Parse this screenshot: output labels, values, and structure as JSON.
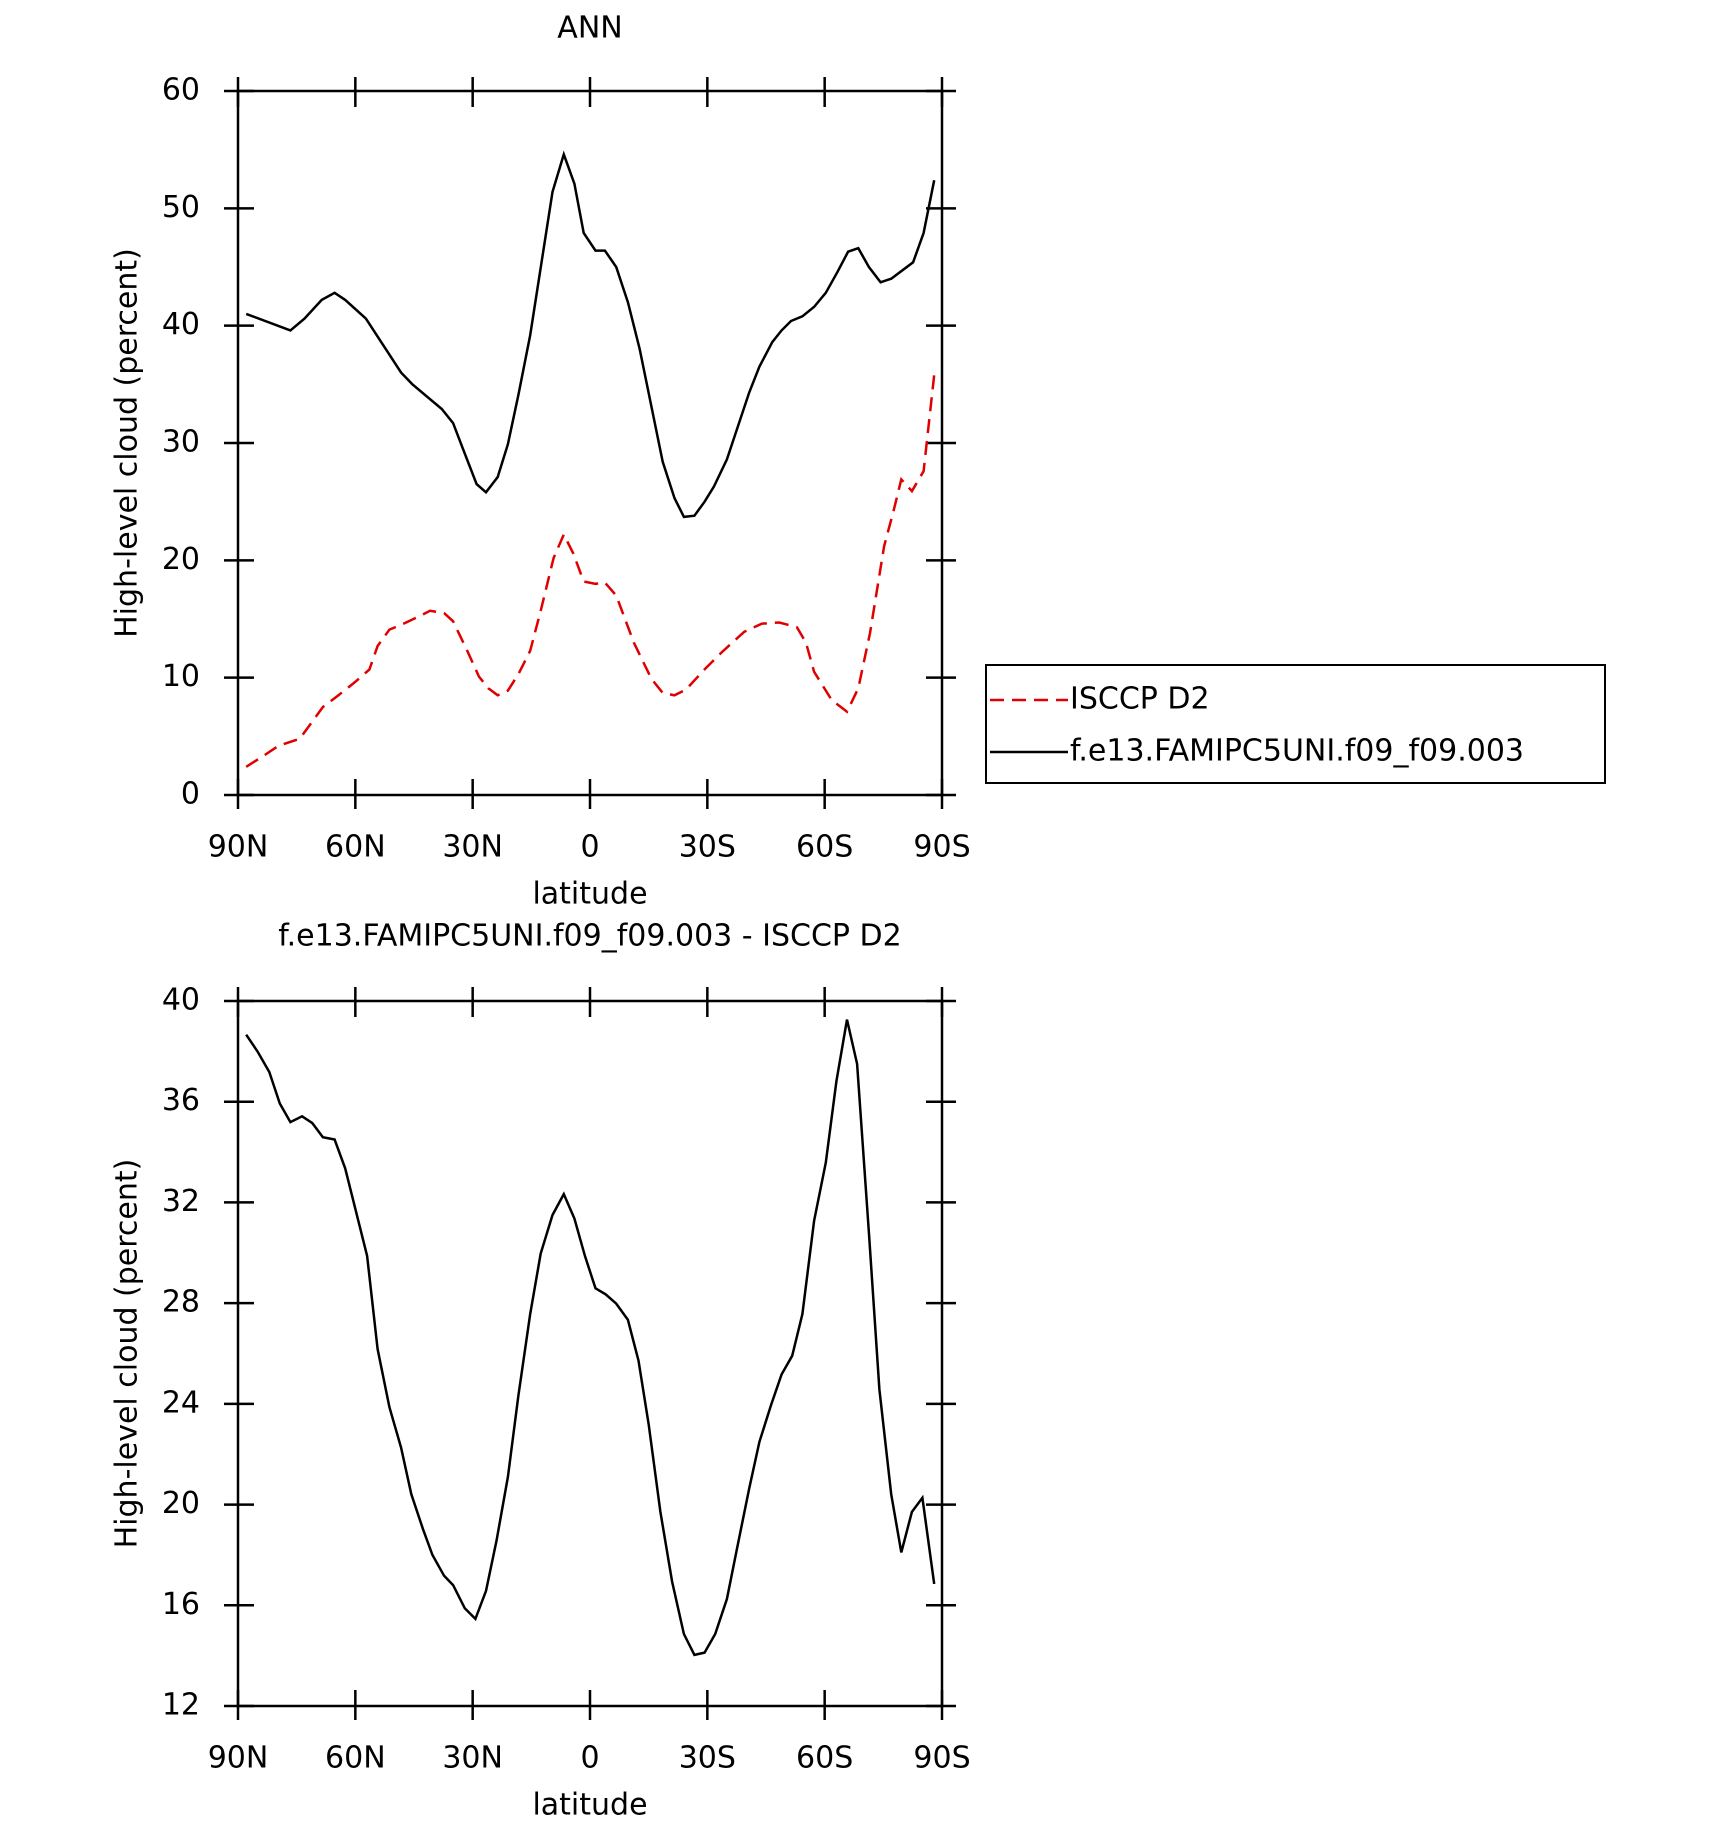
{
  "chart_data": [
    {
      "type": "line",
      "title": "ANN",
      "xlabel": "latitude",
      "ylabel": "High-level cloud (percent)",
      "xlim": [
        90,
        -90
      ],
      "ylim": [
        0,
        60
      ],
      "xticks": [
        {
          "value": 90,
          "label": "90N"
        },
        {
          "value": 60,
          "label": "60N"
        },
        {
          "value": 30,
          "label": "30N"
        },
        0,
        {
          "value": -30,
          "label": "30S"
        },
        {
          "value": -60,
          "label": "60S"
        },
        {
          "value": -90,
          "label": "90S"
        }
      ],
      "yticks": [
        0,
        10,
        20,
        30,
        40,
        50,
        60
      ],
      "legend": "right",
      "series": [
        {
          "name": "ISCCP D2",
          "color": "#e00000",
          "dash": true,
          "x": [
            87.9,
            83.2,
            79.6,
            74.2,
            68.3,
            64.7,
            60.2,
            56.4,
            54.3,
            51.3,
            48.3,
            43.9,
            40.9,
            37.3,
            35,
            31.4,
            28.4,
            26,
            23.6,
            21,
            18.3,
            15.3,
            12.6,
            9.3,
            6.7,
            4.3,
            1.6,
            -1.4,
            -3.8,
            -6.7,
            -11.2,
            -15.7,
            -18.6,
            -21.6,
            -24.6,
            -29,
            -33.5,
            -39.4,
            -43.9,
            -48.4,
            -52.9,
            -55.2,
            -57.3,
            -61.8,
            -65.7,
            -68.6,
            -71.6,
            -75.2,
            -77.6,
            -79.6,
            -82.3,
            -85.3,
            -88
          ],
          "values": [
            2.4,
            3.4,
            4.2,
            4.8,
            7.5,
            8.4,
            9.6,
            10.7,
            12.7,
            14.1,
            14.5,
            15.2,
            15.7,
            15.5,
            14.8,
            12.3,
            10.1,
            9.1,
            8.5,
            8.9,
            10.3,
            12.3,
            15.7,
            20.2,
            22.2,
            20.6,
            18.2,
            18.0,
            18.1,
            17.0,
            13.0,
            9.9,
            8.7,
            8.5,
            9.0,
            10.6,
            12.1,
            13.9,
            14.6,
            14.7,
            14.3,
            13.0,
            10.5,
            8.1,
            7.1,
            9.1,
            13.8,
            21.2,
            24.2,
            26.9,
            25.9,
            27.6,
            35.8
          ]
        },
        {
          "name": "f.e13.FAMIPC5UNI.f09_f09.003",
          "color": "#000000",
          "dash": false,
          "x": [
            87.9,
            76.6,
            73,
            68.6,
            65.3,
            62.6,
            57.3,
            52.8,
            48.3,
            45.4,
            37.9,
            35,
            32.6,
            29,
            26.6,
            23.6,
            21,
            18.3,
            15.3,
            9.6,
            6.7,
            4,
            1.6,
            -1.4,
            -3.8,
            -6.7,
            -9.7,
            -12.7,
            -18.6,
            -21.6,
            -24,
            -26.7,
            -29.3,
            -31.7,
            -35,
            -40.7,
            -43.3,
            -46.6,
            -49,
            -51.4,
            -54.3,
            -57.3,
            -60.3,
            -63.3,
            -66,
            -68.6,
            -71.3,
            -74.3,
            -77,
            -82.6,
            -85.3,
            -88
          ],
          "values": [
            41.0,
            39.6,
            40.6,
            42.2,
            42.8,
            42.2,
            40.6,
            38.3,
            36.0,
            35.0,
            32.9,
            31.7,
            29.6,
            26.5,
            25.8,
            27.1,
            29.9,
            34.1,
            39.2,
            51.4,
            54.6,
            52.1,
            47.9,
            46.4,
            46.4,
            45.0,
            42.0,
            38.0,
            28.4,
            25.3,
            23.7,
            23.8,
            25.0,
            26.3,
            28.6,
            34.3,
            36.5,
            38.6,
            39.6,
            40.4,
            40.8,
            41.6,
            42.8,
            44.6,
            46.3,
            46.6,
            45.0,
            43.7,
            44.0,
            45.4,
            47.9,
            52.4
          ]
        }
      ]
    },
    {
      "type": "line",
      "title": "f.e13.FAMIPC5UNI.f09_f09.003 - ISCCP D2",
      "xlabel": "latitude",
      "ylabel": "High-level cloud (percent)",
      "xlim": [
        90,
        -90
      ],
      "ylim": [
        12,
        40
      ],
      "xticks": [
        {
          "value": 90,
          "label": "90N"
        },
        {
          "value": 60,
          "label": "60N"
        },
        {
          "value": 30,
          "label": "30N"
        },
        0,
        {
          "value": -30,
          "label": "30S"
        },
        {
          "value": -60,
          "label": "60S"
        },
        {
          "value": -90,
          "label": "90S"
        }
      ],
      "yticks": [
        12,
        16,
        20,
        24,
        28,
        32,
        36,
        40
      ],
      "series": [
        {
          "color": "#000000",
          "dash": false,
          "x": [
            87.9,
            84.9,
            82,
            79.3,
            76.6,
            73.6,
            71,
            68.3,
            65.3,
            62.6,
            57,
            54.3,
            51.3,
            48.3,
            45.7,
            42.7,
            40.3,
            37.3,
            35,
            32,
            29.3,
            26.6,
            23.9,
            21,
            18.3,
            15.3,
            12.6,
            9.6,
            6.7,
            4,
            1.3,
            -1.4,
            -4,
            -6.7,
            -9.7,
            -12.4,
            -15,
            -18,
            -21,
            -24,
            -26.7,
            -29.3,
            -32,
            -35,
            -37.7,
            -40.7,
            -43.3,
            -46.3,
            -49,
            -51.7,
            -54.3,
            -57.3,
            -60.3,
            -63,
            -65.7,
            -68.3,
            -71.3,
            -74,
            -77,
            -79.6,
            -82.3,
            -85,
            -88
          ],
          "values": [
            38.66,
            37.97,
            37.18,
            35.93,
            35.19,
            35.42,
            35.15,
            34.59,
            34.5,
            33.35,
            29.88,
            26.18,
            23.87,
            22.26,
            20.41,
            19.02,
            18.0,
            17.17,
            16.8,
            15.88,
            15.46,
            16.57,
            18.56,
            21.1,
            24.33,
            27.57,
            29.97,
            31.5,
            32.33,
            31.36,
            29.88,
            28.59,
            28.35,
            27.98,
            27.34,
            25.72,
            23.18,
            19.71,
            16.94,
            14.86,
            14.03,
            14.12,
            14.86,
            16.25,
            18.33,
            20.64,
            22.49,
            23.96,
            25.17,
            25.91,
            27.57,
            31.27,
            33.58,
            36.81,
            39.26,
            37.5,
            30.8,
            24.57,
            20.41,
            18.1,
            19.71,
            20.27,
            16.85
          ]
        }
      ]
    }
  ]
}
